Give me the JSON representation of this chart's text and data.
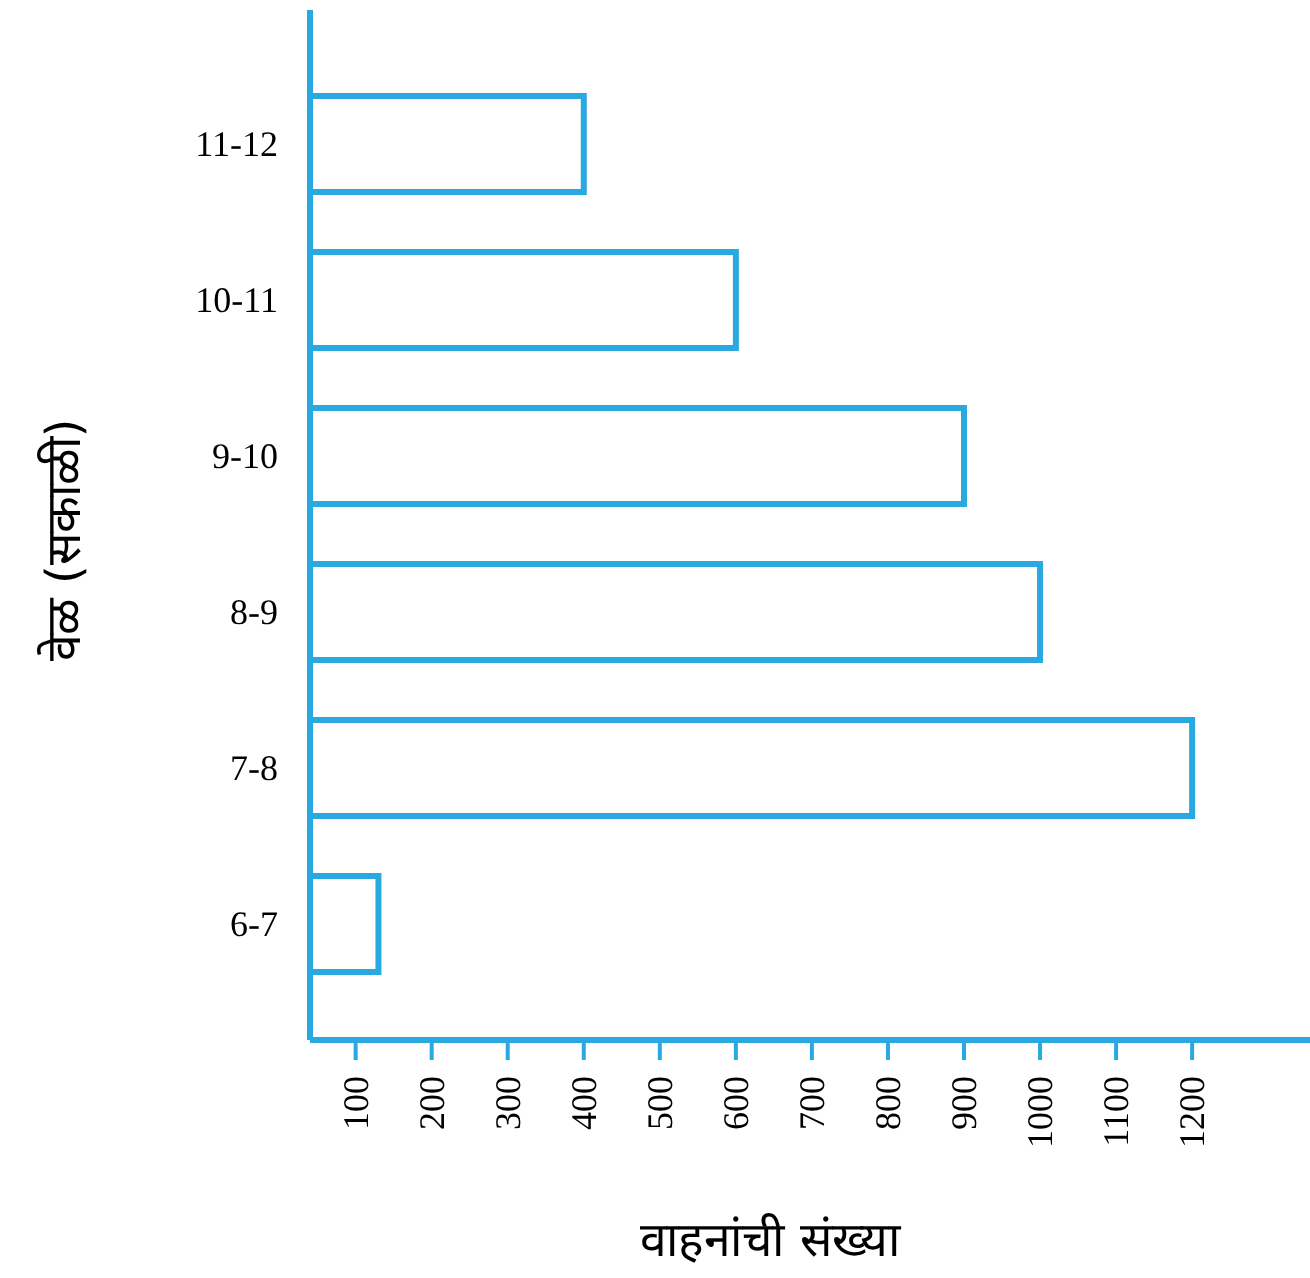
{
  "chart_data": {
    "type": "bar",
    "orientation": "horizontal",
    "xlabel": "वाहनांची संख्या",
    "ylabel": "वेळ (सकाळी)",
    "categories": [
      "11-12",
      "10-11",
      "9-10",
      "8-9",
      "7-8",
      "6-7"
    ],
    "values": [
      400,
      600,
      900,
      1000,
      1200,
      130
    ],
    "color": "#29a9e0",
    "xlim": [
      40,
      1355
    ],
    "xticks": [
      100,
      200,
      300,
      400,
      500,
      600,
      700,
      800,
      900,
      1000,
      1100,
      1200
    ]
  }
}
